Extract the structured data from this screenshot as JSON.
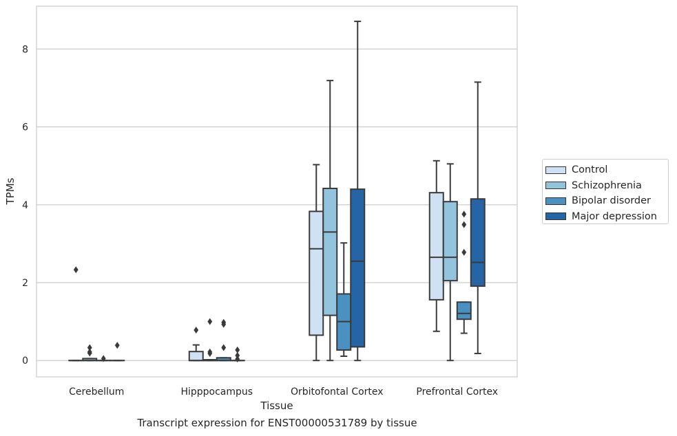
{
  "chart_data": {
    "type": "box",
    "caption": "Transcript expression for ENST00000531789 by tissue",
    "xlabel": "Tissue",
    "ylabel": "TPMs",
    "ylim": [
      -0.42,
      9.1
    ],
    "yticks": [
      0,
      2,
      4,
      6,
      8
    ],
    "grid": "horizontal",
    "legend_position": "center-right",
    "categories": [
      "Cerebellum",
      "Hipppocampus",
      "Orbitofontal Cortex",
      "Prefrontal Cortex"
    ],
    "series": [
      {
        "name": "Control",
        "color": "#cfe1f2",
        "boxes": [
          {
            "q1": 0,
            "med": 0,
            "q3": 0,
            "wlo": 0,
            "whi": 0,
            "fliers": [
              2.33
            ]
          },
          {
            "q1": 0,
            "med": 0,
            "q3": 0.23,
            "wlo": 0,
            "whi": 0.4,
            "fliers": [
              0.78
            ]
          },
          {
            "q1": 0.65,
            "med": 2.87,
            "q3": 3.83,
            "wlo": 0,
            "whi": 5.03,
            "fliers": []
          },
          {
            "q1": 1.56,
            "med": 2.65,
            "q3": 4.31,
            "wlo": 0.75,
            "whi": 5.13,
            "fliers": []
          }
        ]
      },
      {
        "name": "Schizophrenia",
        "color": "#93c4de",
        "boxes": [
          {
            "q1": 0,
            "med": 0,
            "q3": 0.05,
            "wlo": 0,
            "whi": 0.05,
            "fliers": [
              0.19,
              0.22,
              0.33
            ]
          },
          {
            "q1": 0,
            "med": 0,
            "q3": 0.02,
            "wlo": 0,
            "whi": 0.02,
            "fliers": [
              0.18,
              0.22,
              1.0
            ]
          },
          {
            "q1": 1.16,
            "med": 3.3,
            "q3": 4.42,
            "wlo": 0,
            "whi": 7.19,
            "fliers": []
          },
          {
            "q1": 2.05,
            "med": 2.65,
            "q3": 4.08,
            "wlo": 0,
            "whi": 5.05,
            "fliers": []
          }
        ]
      },
      {
        "name": "Bipolar disorder",
        "color": "#4a91c2",
        "boxes": [
          {
            "q1": 0,
            "med": 0,
            "q3": 0,
            "wlo": 0,
            "whi": 0,
            "fliers": [
              0.05
            ]
          },
          {
            "q1": 0,
            "med": 0,
            "q3": 0.07,
            "wlo": 0,
            "whi": 0.07,
            "fliers": [
              0.33,
              0.93,
              0.98
            ]
          },
          {
            "q1": 0.27,
            "med": 1.0,
            "q3": 1.71,
            "wlo": 0.11,
            "whi": 3.02,
            "fliers": []
          },
          {
            "q1": 1.06,
            "med": 1.21,
            "q3": 1.5,
            "wlo": 0.7,
            "whi": 1.5,
            "fliers": [
              2.78,
              3.49,
              3.76
            ]
          }
        ]
      },
      {
        "name": "Major depression",
        "color": "#2564a5",
        "boxes": [
          {
            "q1": 0,
            "med": 0,
            "q3": 0,
            "wlo": 0,
            "whi": 0,
            "fliers": [
              0.39
            ]
          },
          {
            "q1": 0,
            "med": 0,
            "q3": 0,
            "wlo": 0,
            "whi": 0,
            "fliers": [
              0.04,
              0.13,
              0.27
            ]
          },
          {
            "q1": 0.35,
            "med": 2.55,
            "q3": 4.4,
            "wlo": 0,
            "whi": 8.71,
            "fliers": []
          },
          {
            "q1": 1.91,
            "med": 2.52,
            "q3": 4.15,
            "wlo": 0.18,
            "whi": 7.15,
            "fliers": []
          }
        ]
      }
    ]
  }
}
